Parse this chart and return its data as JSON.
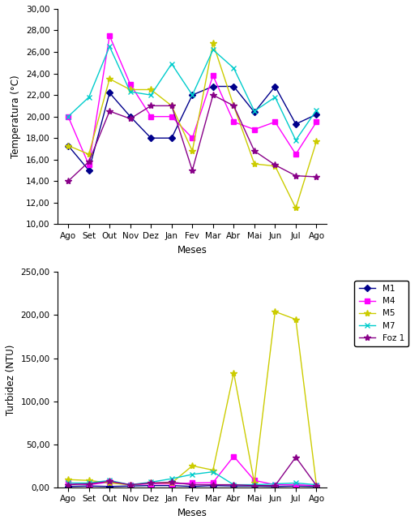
{
  "months": [
    "Ago",
    "Set",
    "Out",
    "Nov",
    "Dez",
    "Jan",
    "Fev",
    "Mar",
    "Abr",
    "Mai",
    "Jun",
    "Jul",
    "Ago"
  ],
  "temp": {
    "M1": [
      17.3,
      15.0,
      22.2,
      20.0,
      18.0,
      18.0,
      22.0,
      22.8,
      22.8,
      20.4,
      22.8,
      19.3,
      20.2
    ],
    "M4": [
      20.0,
      15.5,
      27.5,
      23.0,
      20.0,
      20.0,
      18.0,
      23.8,
      19.5,
      18.8,
      19.5,
      16.5,
      19.5
    ],
    "M5": [
      17.3,
      16.5,
      23.5,
      22.5,
      22.5,
      21.0,
      16.8,
      26.8,
      21.0,
      15.6,
      15.4,
      11.5,
      17.7
    ],
    "M7": [
      20.0,
      21.8,
      26.5,
      22.3,
      22.0,
      24.9,
      22.0,
      26.2,
      24.5,
      20.5,
      21.8,
      17.8,
      20.6
    ],
    "Foz1": [
      14.0,
      15.8,
      20.5,
      19.8,
      21.0,
      21.0,
      15.0,
      22.0,
      21.0,
      16.8,
      15.5,
      14.5,
      14.4
    ]
  },
  "turb": {
    "M1": [
      1.0,
      1.5,
      1.0,
      1.5,
      2.0,
      2.0,
      1.0,
      2.0,
      1.5,
      1.5,
      1.0,
      1.5,
      1.0
    ],
    "M4": [
      5.0,
      3.0,
      6.0,
      3.0,
      4.0,
      4.0,
      5.0,
      5.5,
      36.0,
      8.0,
      3.0,
      3.0,
      2.0
    ],
    "M5": [
      9.0,
      8.0,
      5.0,
      3.0,
      5.0,
      5.0,
      25.0,
      20.0,
      133.0,
      5.0,
      204.0,
      195.0,
      2.0
    ],
    "M7": [
      5.0,
      5.0,
      8.0,
      3.0,
      6.0,
      10.0,
      15.0,
      18.0,
      3.0,
      3.0,
      4.0,
      5.0,
      3.0
    ],
    "Foz1": [
      3.0,
      4.0,
      7.0,
      3.0,
      5.0,
      6.0,
      3.0,
      3.0,
      3.0,
      2.0,
      2.0,
      35.0,
      2.0
    ]
  },
  "colors": {
    "M1": "#00008B",
    "M4": "#FF00FF",
    "M5": "#CCCC00",
    "M7": "#00CCCC",
    "Foz1": "#880088"
  },
  "temp_ylim": [
    10.0,
    30.0
  ],
  "temp_yticks": [
    10.0,
    12.0,
    14.0,
    16.0,
    18.0,
    20.0,
    22.0,
    24.0,
    26.0,
    28.0,
    30.0
  ],
  "turb_ylim": [
    0.0,
    250.0
  ],
  "turb_yticks": [
    0.0,
    50.0,
    100.0,
    150.0,
    200.0,
    250.0
  ],
  "xlabel": "Meses",
  "temp_ylabel": "Temperatura (°C)",
  "turb_ylabel": "Turbidez (NTU)",
  "legend_labels": [
    "M1",
    "M4",
    "M5",
    "M7",
    "Foz 1"
  ]
}
